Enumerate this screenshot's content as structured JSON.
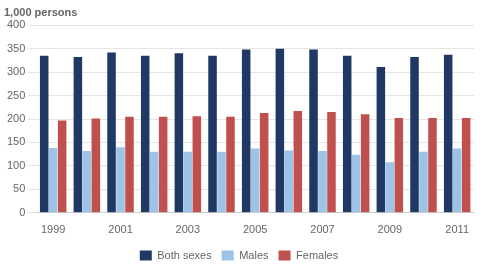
{
  "chart_data": {
    "type": "bar",
    "ylabel": "1,000 persons",
    "categories": [
      "1999",
      null,
      "2001",
      null,
      "2003",
      null,
      "2005",
      null,
      "2007",
      null,
      "2009",
      null,
      "2011"
    ],
    "series": [
      {
        "name": "Both sexes",
        "color": "#1f3864",
        "values": [
          335,
          332,
          342,
          335,
          340,
          335,
          348,
          350,
          348,
          335,
          311,
          332,
          337
        ]
      },
      {
        "name": "Males",
        "color": "#9dc3e6",
        "values": [
          138,
          132,
          140,
          130,
          130,
          130,
          137,
          133,
          132,
          124,
          108,
          130,
          137
        ]
      },
      {
        "name": "Females",
        "color": "#c0504d",
        "values": [
          197,
          201,
          205,
          205,
          206,
          205,
          213,
          217,
          215,
          210,
          202,
          202,
          202
        ]
      }
    ],
    "ylim": [
      0,
      400
    ],
    "yticks": [
      0,
      50,
      100,
      150,
      200,
      250,
      300,
      350,
      400
    ],
    "grid": true,
    "legend": "bottom"
  }
}
